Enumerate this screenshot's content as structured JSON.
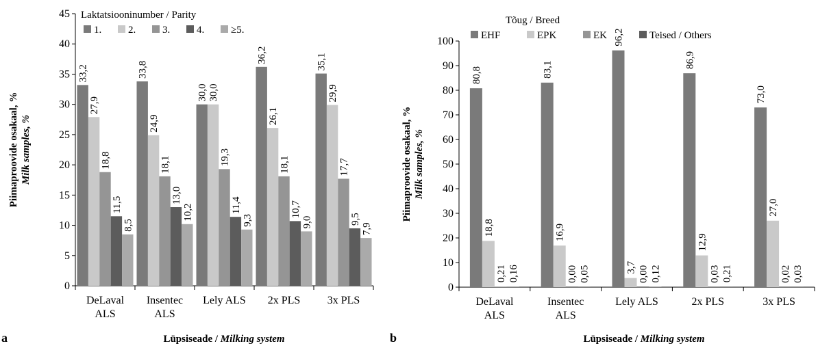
{
  "chart_data": [
    {
      "panel_letter": "a",
      "type": "bar",
      "title": "",
      "ylabel_line1": "Piimaproovide osakaal, %",
      "ylabel_line2": "Milk samples, %",
      "xlabel_plain": "Lüpsiseade / ",
      "xlabel_italic": "Milking system",
      "ylim": [
        0,
        45
      ],
      "yticks": [
        0,
        5,
        10,
        15,
        20,
        25,
        30,
        35,
        40,
        45
      ],
      "categories": [
        "DeLaval ALS",
        "Insentec ALS",
        "Lely ALS",
        "2x PLS",
        "3x PLS"
      ],
      "category_lines": [
        [
          "DeLaval",
          "ALS"
        ],
        [
          "Insentec",
          "ALS"
        ],
        [
          "Lely ALS"
        ],
        [
          "2x PLS"
        ],
        [
          "3x PLS"
        ]
      ],
      "legend_title": "Laktatsiooninumber / Parity",
      "legend_position": "top-left",
      "grid": false,
      "series": [
        {
          "name": "1.",
          "color": "#7a7a7a",
          "values": [
            33.2,
            33.8,
            30.0,
            36.2,
            35.1
          ],
          "labels": [
            "33,2",
            "33,8",
            "30,0",
            "36,2",
            "35,1"
          ]
        },
        {
          "name": "2.",
          "color": "#c9c9c9",
          "values": [
            27.9,
            24.9,
            30.0,
            26.1,
            29.9
          ],
          "labels": [
            "27,9",
            "24,9",
            "30,0",
            "26,1",
            "29,9"
          ]
        },
        {
          "name": "3.",
          "color": "#959595",
          "values": [
            18.8,
            18.1,
            19.3,
            18.1,
            17.7
          ],
          "labels": [
            "18,8",
            "18,1",
            "19,3",
            "18,1",
            "17,7"
          ]
        },
        {
          "name": "4.",
          "color": "#5c5c5c",
          "values": [
            11.5,
            13.0,
            11.4,
            10.7,
            9.5
          ],
          "labels": [
            "11,5",
            "13,0",
            "11,4",
            "10,7",
            "9,5"
          ]
        },
        {
          "name": "≥5.",
          "color": "#aaaaaa",
          "values": [
            8.5,
            10.2,
            9.3,
            9.0,
            7.9
          ],
          "labels": [
            "8,5",
            "10,2",
            "9,3",
            "9,0",
            "7,9"
          ]
        }
      ]
    },
    {
      "panel_letter": "b",
      "type": "bar",
      "title": "",
      "ylabel_line1": "Piimaproovide osakaal, %",
      "ylabel_line2": "Milk samples, %",
      "xlabel_plain": "Lüpsiseade / ",
      "xlabel_italic": "Milking system",
      "ylim": [
        0,
        100
      ],
      "yticks": [
        0,
        10,
        20,
        30,
        40,
        50,
        60,
        70,
        80,
        90,
        100
      ],
      "categories": [
        "DeLaval ALS",
        "Insentec ALS",
        "Lely ALS",
        "2x PLS",
        "3x PLS"
      ],
      "category_lines": [
        [
          "DeLaval",
          "ALS"
        ],
        [
          "Insentec",
          "ALS"
        ],
        [
          "Lely ALS"
        ],
        [
          "2x PLS"
        ],
        [
          "3x PLS"
        ]
      ],
      "legend_title": "Tõug / Breed",
      "legend_position": "top-left",
      "grid": false,
      "series": [
        {
          "name": "EHF",
          "color": "#7a7a7a",
          "values": [
            80.8,
            83.1,
            96.2,
            86.9,
            73.0
          ],
          "labels": [
            "80,8",
            "83,1",
            "96,2",
            "86,9",
            "73,0"
          ]
        },
        {
          "name": "EPK",
          "color": "#c9c9c9",
          "values": [
            18.8,
            16.9,
            3.7,
            12.9,
            27.0
          ],
          "labels": [
            "18,8",
            "16,9",
            "3,7",
            "12,9",
            "27,0"
          ]
        },
        {
          "name": "EK",
          "color": "#959595",
          "values": [
            0.21,
            0.0,
            0.0,
            0.03,
            0.02
          ],
          "labels": [
            "0,21",
            "0,00",
            "0,00",
            "0,03",
            "0,02"
          ]
        },
        {
          "name": "Teised / Others",
          "color": "#5c5c5c",
          "values": [
            0.16,
            0.05,
            0.12,
            0.21,
            0.03
          ],
          "labels": [
            "0,16",
            "0,05",
            "0,12",
            "0,21",
            "0,03"
          ]
        }
      ]
    }
  ]
}
